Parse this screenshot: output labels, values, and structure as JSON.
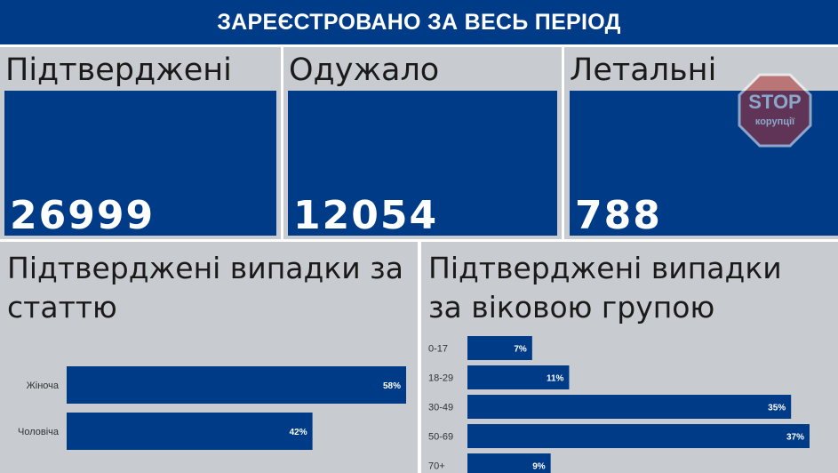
{
  "header": {
    "title": "ЗАРЕЄСТРОВАНО ЗА ВЕСЬ ПЕРІОД"
  },
  "cards": [
    {
      "label": "Підтверджені",
      "value": "26999"
    },
    {
      "label": "Одужало",
      "value": "12054"
    },
    {
      "label": "Летальні",
      "value": "788"
    }
  ],
  "watermark": {
    "text_top": "STOP",
    "text_bottom": "корупції"
  },
  "colors": {
    "banner": "#003b87",
    "bar": "#003b87",
    "panel": "#c8ccd0"
  },
  "chart_data": [
    {
      "type": "bar",
      "orientation": "horizontal",
      "title": "Підтверджені випадки за статтю",
      "categories": [
        "Жіноча",
        "Чоловіча"
      ],
      "values": [
        58,
        42
      ],
      "labels": [
        "58%",
        "42%"
      ],
      "xlim": [
        0,
        58
      ]
    },
    {
      "type": "bar",
      "orientation": "horizontal",
      "title": "Підтверджені випадки за віковою групою",
      "categories": [
        "0-17",
        "18-29",
        "30-49",
        "50-69",
        "70+"
      ],
      "values": [
        7,
        11,
        35,
        37,
        9
      ],
      "labels": [
        "7%",
        "11%",
        "35%",
        "37%",
        "9%"
      ],
      "xlim": [
        0,
        37
      ]
    }
  ]
}
